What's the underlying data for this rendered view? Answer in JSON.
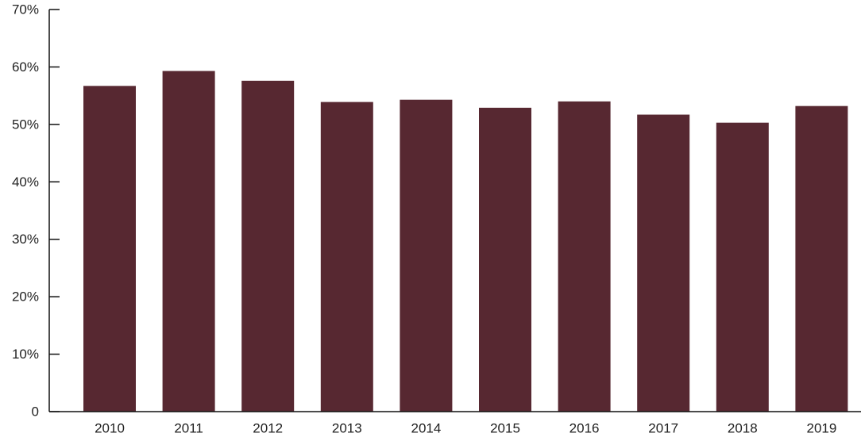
{
  "chart_data": {
    "type": "bar",
    "categories": [
      "2010",
      "2011",
      "2012",
      "2013",
      "2014",
      "2015",
      "2016",
      "2017",
      "2018",
      "2019"
    ],
    "values": [
      56.7,
      59.3,
      57.6,
      53.9,
      54.3,
      52.9,
      54.0,
      51.7,
      50.3,
      53.2
    ],
    "title": "",
    "xlabel": "",
    "ylabel": "",
    "ylim": [
      0,
      70
    ],
    "yticks": [
      0,
      10,
      20,
      30,
      40,
      50,
      60,
      70
    ],
    "ytick_labels": [
      "0",
      "10%",
      "20%",
      "30%",
      "40%",
      "50%",
      "60%",
      "70%"
    ],
    "grid": false,
    "bar_color": "#572831"
  }
}
